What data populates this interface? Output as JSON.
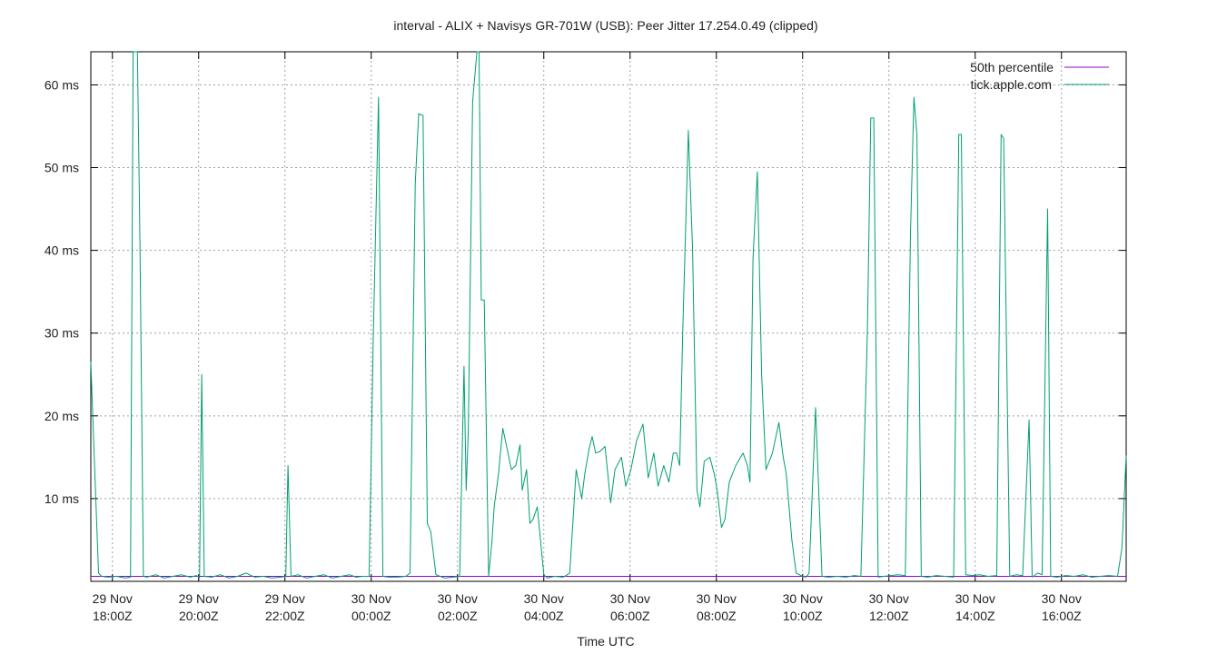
{
  "chart_data": {
    "type": "line",
    "title": "interval - ALIX + Navisys GR-701W (USB): Peer Jitter 17.254.0.49 (clipped)",
    "xlabel": "Time UTC",
    "ylabel": "",
    "grid": true,
    "legend_position": "top-right",
    "x_range_hours": [
      -6.5,
      17.5
    ],
    "ylim": [
      0,
      64
    ],
    "y_ticks": [
      {
        "value": 10,
        "label": "10 ms"
      },
      {
        "value": 20,
        "label": "20 ms"
      },
      {
        "value": 30,
        "label": "30 ms"
      },
      {
        "value": 40,
        "label": "40 ms"
      },
      {
        "value": 50,
        "label": "50 ms"
      },
      {
        "value": 60,
        "label": "60 ms"
      }
    ],
    "x_ticks": [
      {
        "value": -6,
        "line1": "29 Nov",
        "line2": "18:00Z"
      },
      {
        "value": -4,
        "line1": "29 Nov",
        "line2": "20:00Z"
      },
      {
        "value": -2,
        "line1": "29 Nov",
        "line2": "22:00Z"
      },
      {
        "value": 0,
        "line1": "30 Nov",
        "line2": "00:00Z"
      },
      {
        "value": 2,
        "line1": "30 Nov",
        "line2": "02:00Z"
      },
      {
        "value": 4,
        "line1": "30 Nov",
        "line2": "04:00Z"
      },
      {
        "value": 6,
        "line1": "30 Nov",
        "line2": "06:00Z"
      },
      {
        "value": 8,
        "line1": "30 Nov",
        "line2": "08:00Z"
      },
      {
        "value": 10,
        "line1": "30 Nov",
        "line2": "10:00Z"
      },
      {
        "value": 12,
        "line1": "30 Nov",
        "line2": "12:00Z"
      },
      {
        "value": 14,
        "line1": "30 Nov",
        "line2": "14:00Z"
      },
      {
        "value": 16,
        "line1": "30 Nov",
        "line2": "16:00Z"
      }
    ],
    "series": [
      {
        "name": "50th percentile",
        "color": "#9400d3",
        "points": [
          [
            -6.5,
            0.6
          ],
          [
            17.5,
            0.6
          ]
        ]
      },
      {
        "name": "tick.apple.com",
        "color": "#009e73",
        "points": [
          [
            -6.5,
            26.5
          ],
          [
            -6.42,
            15
          ],
          [
            -6.32,
            1
          ],
          [
            -6.25,
            0.6
          ],
          [
            -6.1,
            0.5
          ],
          [
            -5.9,
            0.6
          ],
          [
            -5.7,
            0.4
          ],
          [
            -5.58,
            0.5
          ],
          [
            -5.52,
            64
          ],
          [
            -5.42,
            64
          ],
          [
            -5.36,
            41
          ],
          [
            -5.28,
            0.6
          ],
          [
            -5.2,
            0.5
          ],
          [
            -5.0,
            0.8
          ],
          [
            -4.8,
            0.4
          ],
          [
            -4.6,
            0.6
          ],
          [
            -4.4,
            0.8
          ],
          [
            -4.2,
            0.5
          ],
          [
            -4.05,
            0.7
          ],
          [
            -3.98,
            0.4
          ],
          [
            -3.93,
            25
          ],
          [
            -3.87,
            0.6
          ],
          [
            -3.7,
            0.5
          ],
          [
            -3.5,
            0.8
          ],
          [
            -3.3,
            0.4
          ],
          [
            -3.1,
            0.6
          ],
          [
            -2.9,
            1.0
          ],
          [
            -2.7,
            0.5
          ],
          [
            -2.5,
            0.6
          ],
          [
            -2.3,
            0.4
          ],
          [
            -2.1,
            0.5
          ],
          [
            -1.98,
            0.6
          ],
          [
            -1.93,
            14
          ],
          [
            -1.86,
            0.6
          ],
          [
            -1.7,
            0.8
          ],
          [
            -1.5,
            0.4
          ],
          [
            -1.3,
            0.6
          ],
          [
            -1.1,
            0.8
          ],
          [
            -0.9,
            0.4
          ],
          [
            -0.7,
            0.6
          ],
          [
            -0.5,
            0.8
          ],
          [
            -0.35,
            0.5
          ],
          [
            -0.2,
            0.6
          ],
          [
            -0.05,
            0.6
          ],
          [
            0.05,
            30
          ],
          [
            0.17,
            58.5
          ],
          [
            0.27,
            0.6
          ],
          [
            0.4,
            0.5
          ],
          [
            0.6,
            0.5
          ],
          [
            0.8,
            0.6
          ],
          [
            0.9,
            1.0
          ],
          [
            1.02,
            48
          ],
          [
            1.1,
            56.5
          ],
          [
            1.2,
            56.3
          ],
          [
            1.3,
            7
          ],
          [
            1.38,
            6
          ],
          [
            1.5,
            0.8
          ],
          [
            1.7,
            0.4
          ],
          [
            1.9,
            0.5
          ],
          [
            2.05,
            0.6
          ],
          [
            2.15,
            26
          ],
          [
            2.2,
            11
          ],
          [
            2.25,
            18
          ],
          [
            2.35,
            58
          ],
          [
            2.45,
            64
          ],
          [
            2.5,
            64
          ],
          [
            2.55,
            34
          ],
          [
            2.62,
            34
          ],
          [
            2.72,
            0.6
          ],
          [
            2.8,
            5
          ],
          [
            2.85,
            9
          ],
          [
            2.95,
            13
          ],
          [
            3.05,
            18.5
          ],
          [
            3.15,
            16
          ],
          [
            3.25,
            13.5
          ],
          [
            3.35,
            14
          ],
          [
            3.45,
            16.5
          ],
          [
            3.5,
            11
          ],
          [
            3.6,
            13.5
          ],
          [
            3.68,
            7
          ],
          [
            3.75,
            7.5
          ],
          [
            3.85,
            9
          ],
          [
            4.0,
            0.8
          ],
          [
            4.08,
            0.4
          ],
          [
            4.25,
            0.6
          ],
          [
            4.45,
            0.5
          ],
          [
            4.6,
            1.0
          ],
          [
            4.75,
            13.5
          ],
          [
            4.88,
            10
          ],
          [
            4.95,
            13
          ],
          [
            5.05,
            16
          ],
          [
            5.12,
            17.5
          ],
          [
            5.2,
            15.5
          ],
          [
            5.3,
            15.7
          ],
          [
            5.42,
            16.3
          ],
          [
            5.55,
            9.5
          ],
          [
            5.65,
            13.5
          ],
          [
            5.8,
            15
          ],
          [
            5.9,
            11.5
          ],
          [
            6.02,
            13.5
          ],
          [
            6.15,
            17
          ],
          [
            6.3,
            19
          ],
          [
            6.42,
            12.5
          ],
          [
            6.55,
            15.5
          ],
          [
            6.65,
            11.5
          ],
          [
            6.78,
            14
          ],
          [
            6.9,
            12
          ],
          [
            7.0,
            15.5
          ],
          [
            7.08,
            15.5
          ],
          [
            7.15,
            14
          ],
          [
            7.22,
            30
          ],
          [
            7.35,
            54.5
          ],
          [
            7.45,
            40
          ],
          [
            7.55,
            11
          ],
          [
            7.62,
            9
          ],
          [
            7.72,
            14.5
          ],
          [
            7.85,
            15
          ],
          [
            7.95,
            13
          ],
          [
            8.02,
            11
          ],
          [
            8.12,
            6.5
          ],
          [
            8.2,
            7.5
          ],
          [
            8.3,
            12
          ],
          [
            8.45,
            14
          ],
          [
            8.62,
            15.5
          ],
          [
            8.72,
            14
          ],
          [
            8.78,
            12
          ],
          [
            8.85,
            39
          ],
          [
            8.95,
            49.5
          ],
          [
            9.05,
            25
          ],
          [
            9.15,
            13.5
          ],
          [
            9.3,
            15.5
          ],
          [
            9.45,
            19.2
          ],
          [
            9.55,
            15
          ],
          [
            9.62,
            13
          ],
          [
            9.75,
            5
          ],
          [
            9.85,
            1.0
          ],
          [
            10.0,
            0.6
          ],
          [
            10.08,
            0.5
          ],
          [
            10.15,
            1.0
          ],
          [
            10.3,
            21
          ],
          [
            10.45,
            0.6
          ],
          [
            10.6,
            0.5
          ],
          [
            10.8,
            0.6
          ],
          [
            11.0,
            0.5
          ],
          [
            11.2,
            0.7
          ],
          [
            11.35,
            0.6
          ],
          [
            11.5,
            30
          ],
          [
            11.58,
            56
          ],
          [
            11.65,
            56
          ],
          [
            11.75,
            0.5
          ],
          [
            11.88,
            0.6
          ],
          [
            12.05,
            0.7
          ],
          [
            12.2,
            0.8
          ],
          [
            12.38,
            0.7
          ],
          [
            12.5,
            42
          ],
          [
            12.58,
            58.5
          ],
          [
            12.65,
            54
          ],
          [
            12.75,
            0.6
          ],
          [
            12.9,
            0.5
          ],
          [
            13.1,
            0.7
          ],
          [
            13.3,
            0.6
          ],
          [
            13.5,
            0.5
          ],
          [
            13.62,
            54
          ],
          [
            13.68,
            54
          ],
          [
            13.78,
            0.8
          ],
          [
            13.95,
            0.7
          ],
          [
            14.1,
            0.8
          ],
          [
            14.3,
            0.6
          ],
          [
            14.5,
            0.7
          ],
          [
            14.6,
            54
          ],
          [
            14.66,
            53.5
          ],
          [
            14.8,
            0.6
          ],
          [
            14.95,
            0.8
          ],
          [
            15.1,
            0.7
          ],
          [
            15.25,
            19.5
          ],
          [
            15.32,
            0.5
          ],
          [
            15.45,
            1.0
          ],
          [
            15.55,
            0.8
          ],
          [
            15.68,
            45
          ],
          [
            15.75,
            0.6
          ],
          [
            15.9,
            0.5
          ],
          [
            16.1,
            0.7
          ],
          [
            16.3,
            0.6
          ],
          [
            16.5,
            0.8
          ],
          [
            16.7,
            0.5
          ],
          [
            16.9,
            0.6
          ],
          [
            17.1,
            0.7
          ],
          [
            17.3,
            0.6
          ],
          [
            17.4,
            4
          ],
          [
            17.5,
            15.2
          ]
        ]
      }
    ]
  }
}
